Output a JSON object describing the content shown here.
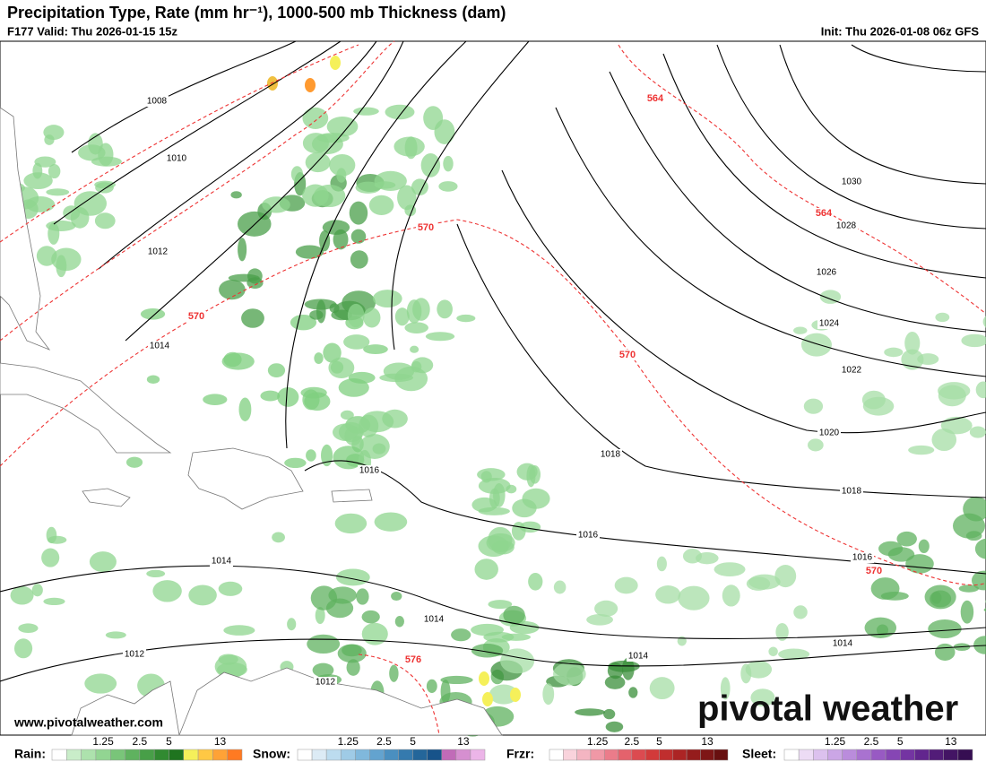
{
  "header": {
    "title": "Precipitation Type, Rate (mm hr⁻¹), 1000-500 mb Thickness (dam)",
    "valid": "F177 Valid: Thu 2026-01-15 15z",
    "init": "Init: Thu 2026-01-08 06z GFS"
  },
  "map": {
    "pressure_labels": [
      "1008",
      "1010",
      "1012",
      "1014",
      "1016",
      "1018",
      "1016",
      "1014",
      "1014",
      "1012",
      "1012",
      "1014",
      "1014",
      "1016",
      "1018",
      "1020",
      "1022",
      "1024",
      "1026",
      "1028",
      "1030"
    ],
    "thickness_labels": [
      "564",
      "564",
      "570",
      "570",
      "570",
      "570",
      "576"
    ]
  },
  "watermark": "www.pivotalweather.com",
  "logo": "pivotal weather",
  "legend": [
    {
      "name": "Rain:",
      "ticks": [
        "1.25",
        "2.5",
        "5",
        "13"
      ],
      "colors": [
        "#ffffff",
        "#c9edc9",
        "#ade2ad",
        "#92d592",
        "#79c579",
        "#5fb25f",
        "#489f48",
        "#318a31",
        "#1f741f",
        "#f5f05a",
        "#ffc844",
        "#ffa236",
        "#ff7a22"
      ]
    },
    {
      "name": "Snow:",
      "ticks": [
        "1.25",
        "2.5",
        "5",
        "13"
      ],
      "colors": [
        "#ffffff",
        "#dcebf5",
        "#bcdcef",
        "#9fcbe6",
        "#80b8dc",
        "#63a3cf",
        "#4a8fc0",
        "#357aae",
        "#24669a",
        "#17538a",
        "#c16bb8",
        "#d68fd0",
        "#ecb5e8"
      ]
    },
    {
      "name": "Frzr:",
      "ticks": [
        "1.25",
        "2.5",
        "5",
        "13"
      ],
      "colors": [
        "#ffffff",
        "#f9d3dc",
        "#f4b5c2",
        "#f098a6",
        "#eb7c8a",
        "#e4626c",
        "#dc4a50",
        "#d23a3a",
        "#c02e2e",
        "#ac2424",
        "#951c1c",
        "#7e1616",
        "#681010"
      ]
    },
    {
      "name": "Sleet:",
      "ticks": [
        "1.25",
        "2.5",
        "5",
        "13"
      ],
      "colors": [
        "#ffffff",
        "#eddcf5",
        "#dcc1ee",
        "#cba6e6",
        "#ba8cdc",
        "#a972d0",
        "#985ac3",
        "#8646b4",
        "#7434a2",
        "#62268e",
        "#521c78",
        "#431464",
        "#360e52"
      ]
    }
  ]
}
